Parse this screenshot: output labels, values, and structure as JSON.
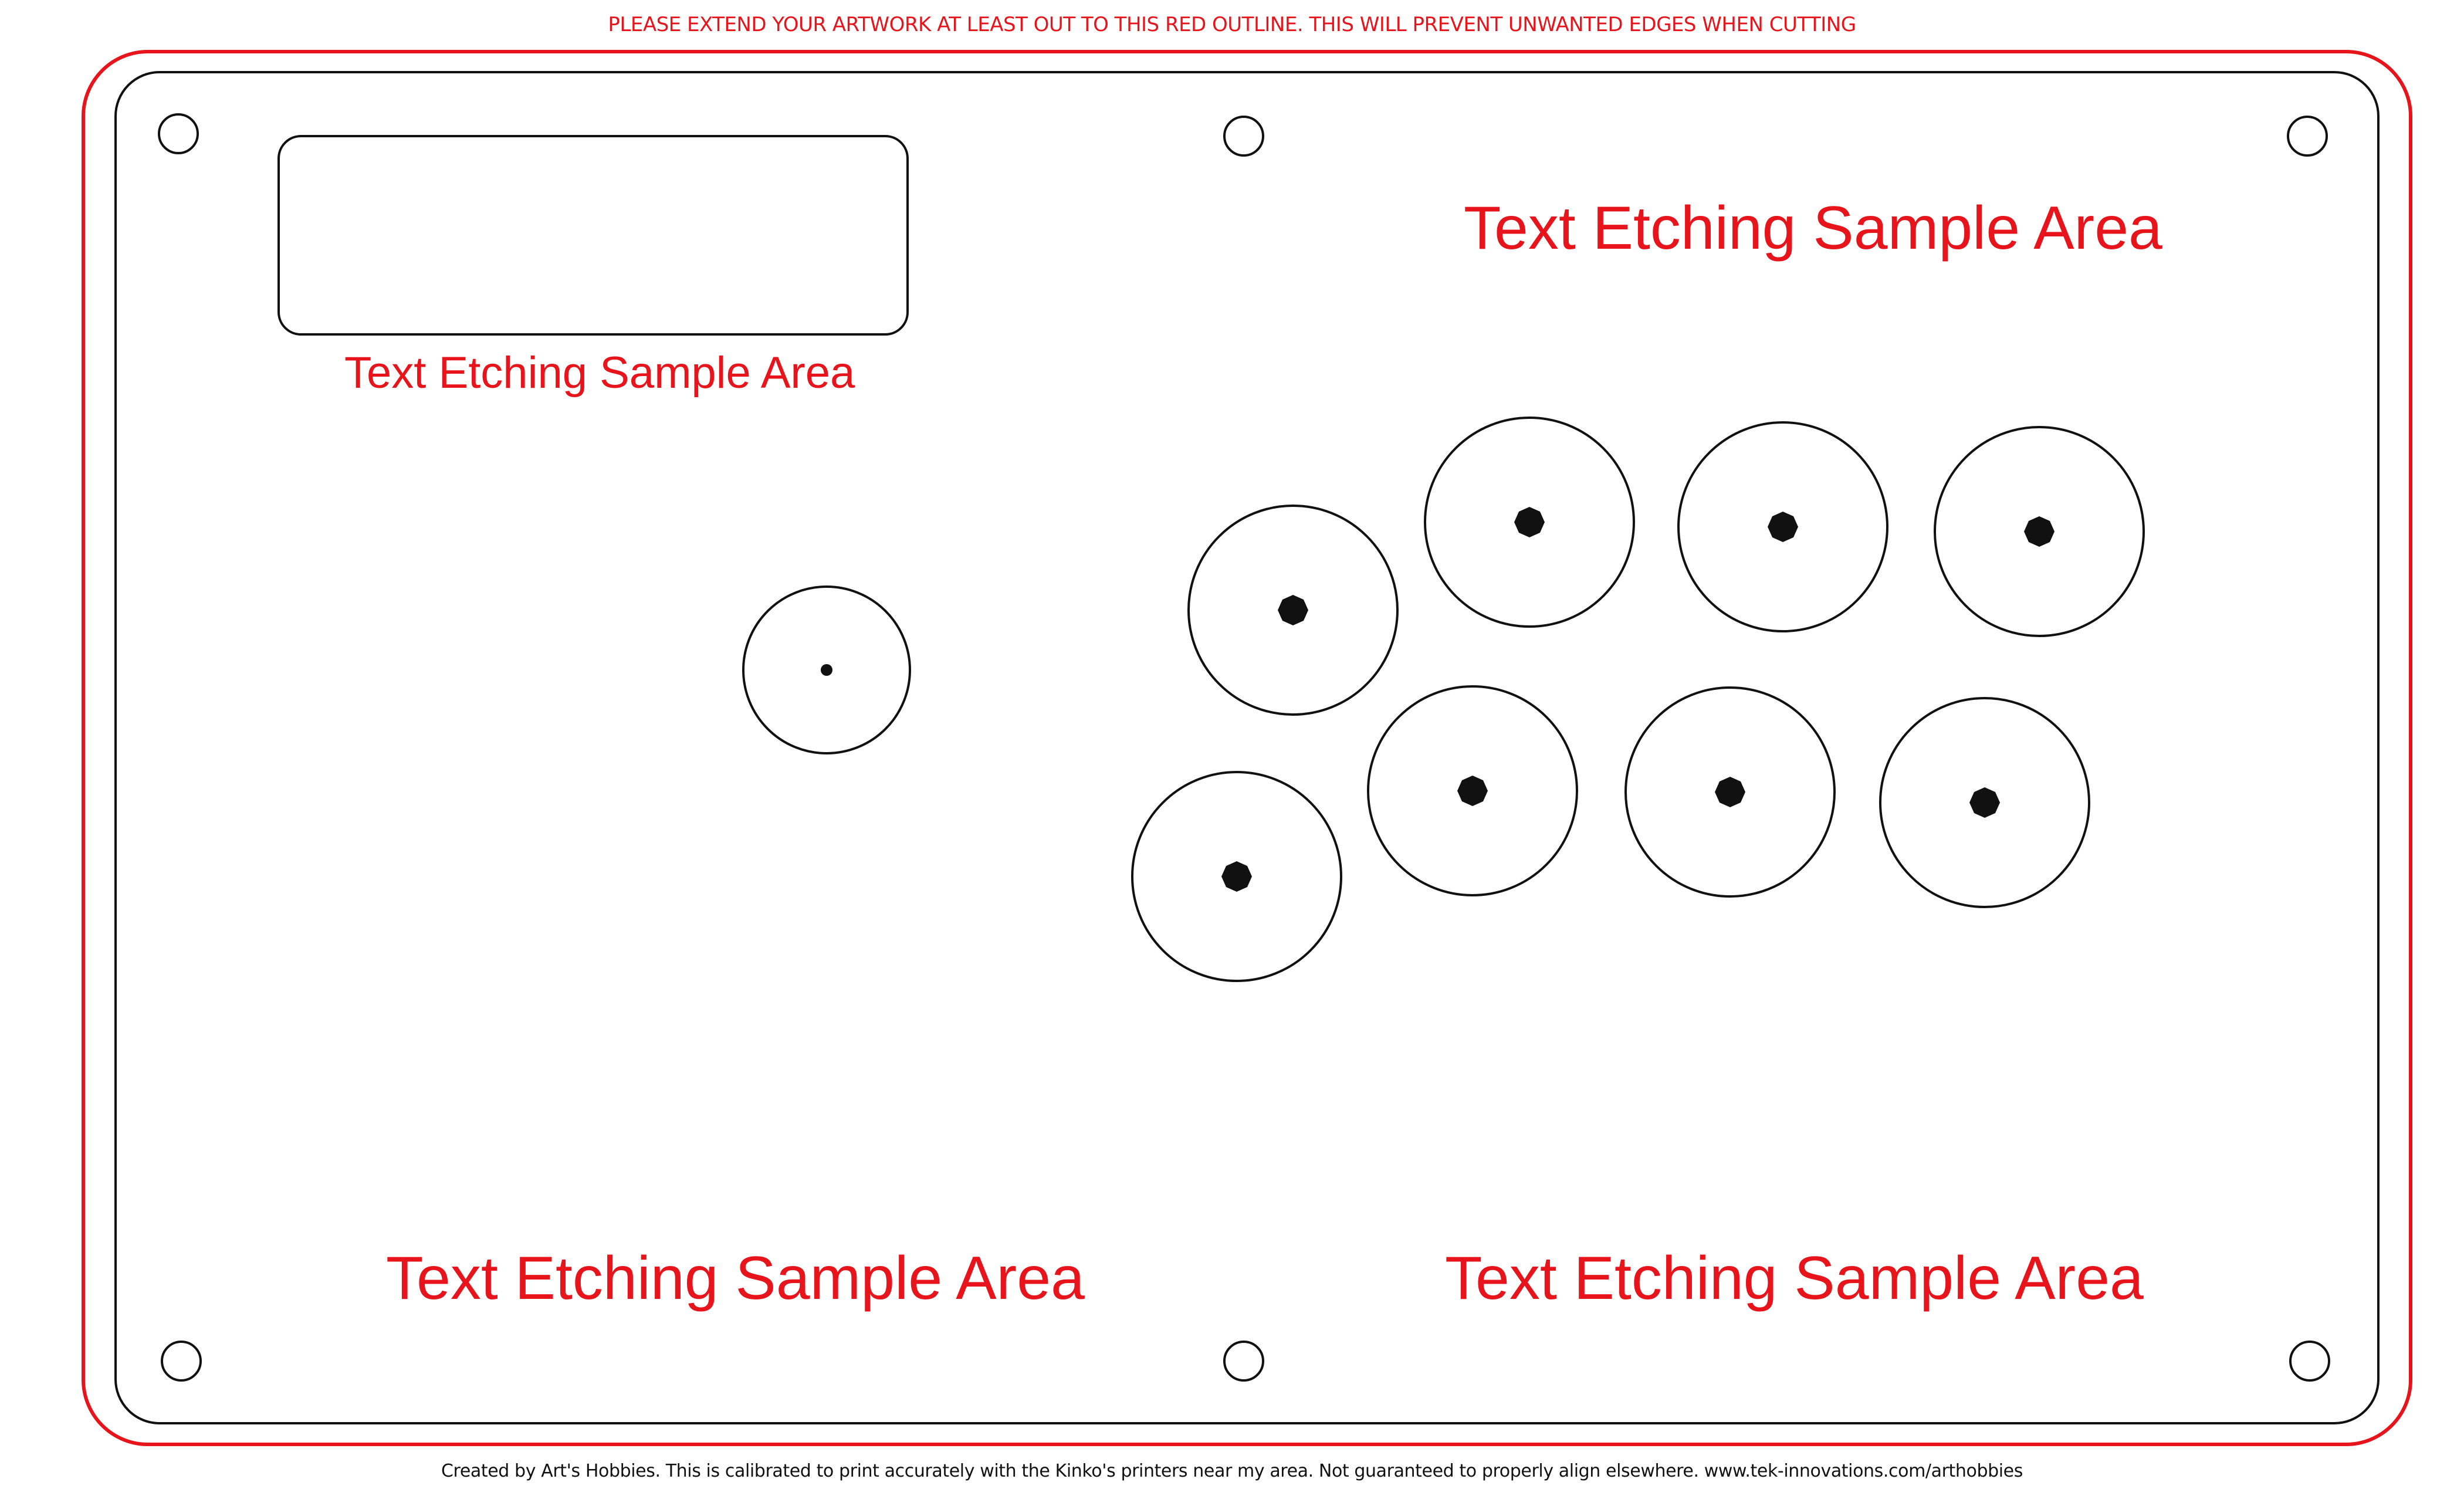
{
  "header": {
    "notice": "PLEASE EXTEND YOUR ARTWORK AT LEAST OUT TO THIS RED OUTLINE. THIS WILL PREVENT UNWANTED EDGES WHEN CUTTING"
  },
  "etching_labels": {
    "top_right": "Text Etching Sample Area",
    "under_display": "Text Etching Sample Area",
    "bottom_left": "Text Etching Sample Area",
    "bottom_right": "Text Etching Sample Area"
  },
  "footer": {
    "credit": "Created by Art's Hobbies. This is calibrated to print accurately with the Kinko's printers near my area. Not guaranteed to properly align elsewhere. www.tek-innovations.com/arthobbies"
  },
  "colors": {
    "guide_red": "#e8141c",
    "outline_black": "#111111",
    "background": "#ffffff"
  },
  "template_parts": {
    "bleed_outline": "red-bleed-outline",
    "cut_line": "panel-cut-line",
    "screw_holes": 6,
    "display_window": 1,
    "joystick": 1,
    "buttons": 8
  }
}
